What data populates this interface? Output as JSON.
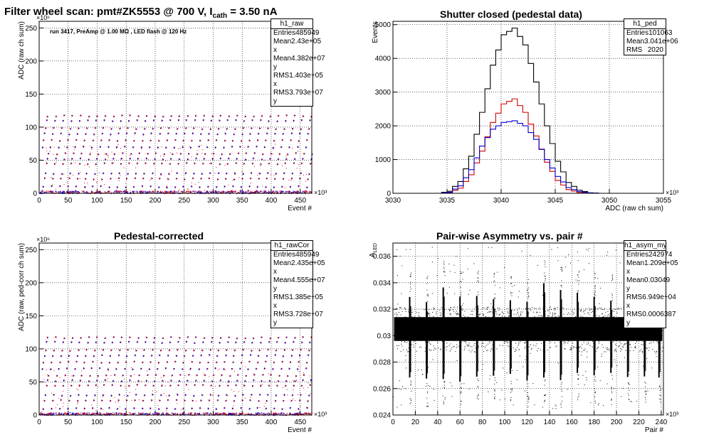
{
  "panels": [
    {
      "id": "raw",
      "title": "Filter wheel scan: pmt#ZK5553 @   700 V, I",
      "title_sub": "cath",
      "title_tail": "  = 3.50 nA",
      "annotation": "run 3417, PreAmp @ 1.00 MΩ , LED flash @  120 Hz",
      "stats": {
        "name": "h1_raw",
        "rows": [
          [
            "Entries",
            "485949"
          ],
          [
            "Mean x",
            "2.43e+05"
          ],
          [
            "Mean y",
            "4.382e+07"
          ],
          [
            "RMS x",
            "1.403e+05"
          ],
          [
            "RMS y",
            "3.793e+07"
          ]
        ]
      }
    },
    {
      "id": "ped",
      "title": "Shutter closed (pedestal data)",
      "stats": {
        "name": "h1_ped",
        "rows": [
          [
            "Entries",
            "101063"
          ],
          [
            "Mean",
            "3.041e+06"
          ],
          [
            "RMS",
            "2020"
          ]
        ]
      }
    },
    {
      "id": "rawCor",
      "title": "Pedestal-corrected",
      "stats": {
        "name": "h1_rawCor",
        "rows": [
          [
            "Entries",
            "485949"
          ],
          [
            "Mean x",
            "2.435e+05"
          ],
          [
            "Mean y",
            "4.555e+07"
          ],
          [
            "RMS x",
            "1.385e+05"
          ],
          [
            "RMS y",
            "3.728e+07"
          ]
        ]
      }
    },
    {
      "id": "asym",
      "title": "Pair-wise Asymmetry vs. pair #",
      "stats": {
        "name": "h1_asym_my",
        "rows": [
          [
            "Entries",
            "242974"
          ],
          [
            "Mean x",
            "1.209e+05"
          ],
          [
            "Mean y",
            "0.03049"
          ],
          [
            "RMS x",
            "6.949e+04"
          ],
          [
            "RMS y",
            "0.0006387"
          ]
        ]
      }
    }
  ],
  "chart_data": [
    {
      "type": "scatter",
      "xlabel": "Event #",
      "ylabel": "ADC (raw ch sum)",
      "x_exponent": "×10³",
      "y_exponent": "×10⁶",
      "xlim": [
        0,
        470
      ],
      "ylim": [
        0,
        260
      ],
      "xticks": [
        0,
        50,
        100,
        150,
        200,
        250,
        300,
        350,
        400,
        450
      ],
      "yticks": [
        0,
        50,
        100,
        150,
        200,
        250
      ],
      "grid": true,
      "levels": [
        3,
        10,
        22,
        30,
        45,
        52,
        60,
        70,
        80,
        90,
        98,
        110,
        117
      ],
      "series": [
        {
          "color": "#e00000"
        },
        {
          "color": "#0000e0"
        }
      ]
    },
    {
      "type": "line",
      "xlabel": "ADC (raw ch sum)",
      "ylabel": "Events",
      "x_exponent": "×10³",
      "xlim": [
        3030,
        3055
      ],
      "ylim": [
        0,
        5100
      ],
      "xticks": [
        3030,
        3035,
        3040,
        3045,
        3050,
        3055
      ],
      "yticks": [
        0,
        1000,
        2000,
        3000,
        4000,
        5000
      ],
      "grid": true,
      "x": [
        3030,
        3031,
        3032,
        3033,
        3034,
        3035,
        3036,
        3037,
        3038,
        3039,
        3040,
        3041,
        3042,
        3043,
        3044,
        3045,
        3046,
        3047,
        3048,
        3049,
        3050,
        3051,
        3052,
        3053,
        3054,
        3055
      ],
      "series": [
        {
          "color": "#000000",
          "values": [
            0,
            0,
            0,
            0,
            0,
            60,
            350,
            1100,
            2400,
            3800,
            4700,
            4900,
            4400,
            3300,
            2000,
            950,
            320,
            90,
            15,
            0,
            0,
            0,
            0,
            0,
            0,
            0
          ]
        },
        {
          "color": "#d00000",
          "values": [
            0,
            0,
            0,
            0,
            0,
            20,
            150,
            550,
            1250,
            2100,
            2650,
            2800,
            2400,
            1700,
            920,
            380,
            110,
            25,
            0,
            0,
            0,
            0,
            0,
            0,
            0,
            0
          ]
        },
        {
          "color": "#0000d0",
          "values": [
            0,
            0,
            0,
            0,
            0,
            30,
            220,
            700,
            1400,
            1900,
            2100,
            2150,
            2000,
            1600,
            1000,
            500,
            170,
            50,
            10,
            0,
            0,
            0,
            0,
            0,
            0,
            0
          ]
        }
      ]
    },
    {
      "type": "scatter",
      "xlabel": "Event #",
      "ylabel": "ADC (raw, ped-corr ch sum)",
      "x_exponent": "×10³",
      "y_exponent": "×10⁶",
      "xlim": [
        0,
        470
      ],
      "ylim": [
        0,
        260
      ],
      "xticks": [
        0,
        50,
        100,
        150,
        200,
        250,
        300,
        350,
        400,
        450
      ],
      "yticks": [
        0,
        50,
        100,
        150,
        200,
        250
      ],
      "grid": true,
      "levels": [
        2,
        10,
        22,
        30,
        45,
        52,
        60,
        70,
        80,
        90,
        98,
        110,
        117
      ],
      "series": [
        {
          "color": "#e00000"
        },
        {
          "color": "#0000e0"
        }
      ]
    },
    {
      "type": "scatter",
      "xlabel": "Pair #",
      "ylabel": "A",
      "ylabel_sub": "LED",
      "x_exponent": "×10³",
      "xlim": [
        0,
        242
      ],
      "ylim": [
        0.024,
        0.037
      ],
      "xticks": [
        0,
        20,
        40,
        60,
        80,
        100,
        120,
        140,
        160,
        180,
        200,
        220,
        240
      ],
      "yticks": [
        0.024,
        0.026,
        0.028,
        0.03,
        0.032,
        0.034,
        0.036
      ],
      "grid": true,
      "band_center": 0.0305,
      "band_halfwidth": 0.0009,
      "spike_positions": [
        15,
        30,
        45,
        60,
        75,
        90,
        105,
        120,
        135,
        150,
        165,
        180,
        195,
        210,
        225,
        238
      ],
      "series": [
        {
          "color": "#000000"
        }
      ]
    }
  ]
}
